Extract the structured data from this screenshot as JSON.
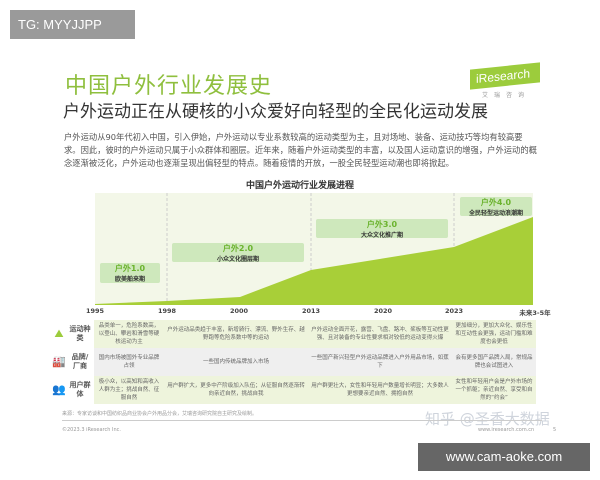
{
  "watermark_top": "TG: MYYJJPP",
  "watermark_bottom": "www.cam-aoke.com",
  "watermark_zhihu": "知乎 @圣香大数据",
  "logo": {
    "text": "iResearch",
    "sub": "艾瑞咨询"
  },
  "title": "中国户外行业发展史",
  "subtitle": "户外运动正在从硬核的小众爱好向轻型的全民化运动发展",
  "intro": "户外运动从90年代初入中国，引入伊始，户外运动以专业系数较高的运动类型为主，且对场地、装备、运动技巧等均有较高要求。因此，彼时的户外运动只属于小众群体和圈层。近年来，随着户外运动类型的丰富，以及国人运动意识的增强，户外运动的概念逐渐被泛化，户外运动也逐渐呈现出偏轻型的特点。随着疫情的开放，一股全民轻型运动潮也即将掀起。",
  "chart": {
    "title": "中国户外运动行业发展进程",
    "x_labels": [
      "1995",
      "1998",
      "2000",
      "2013",
      "2020",
      "2023",
      "未来3-5年"
    ],
    "stages": [
      {
        "name": "户外1.0",
        "desc": "欧美舶来期"
      },
      {
        "name": "户外2.0",
        "desc": "小众文化圈层期"
      },
      {
        "name": "户外3.0",
        "desc": "大众文化推广期"
      },
      {
        "name": "户外4.0",
        "desc": "全民轻型运动浪潮期"
      }
    ],
    "colors": {
      "area": "#a8cf38",
      "background": "#f3f7e8",
      "text_green": "#6bb32e"
    }
  },
  "table": {
    "rows": [
      {
        "icon": "hiking-icon",
        "label": "运动种类",
        "cells": [
          "品类单一，危险系数高，以登山、攀岩和滑雪等硬核运动为主",
          "户外运动品类趋于丰富，新增骑行、漂流、野外生存、越野跑等危险系数中等的运动",
          "户外运动全面开花，露营、飞盘、路冲、桨板等互动性更强、且对装备的专业性要求相对较低的运动变得火爆",
          "更加细分，更加大众化、娱乐性和互动性会更强，运动门槛和难度也会更低"
        ]
      },
      {
        "icon": "brand-icon",
        "label": "品牌/厂商",
        "cells": [
          "国内市场被国外专业品牌占领",
          "一些国内传统品牌加入市场",
          "一些国产新兴轻型户外运动品牌进入户外用品市场，如蕉下",
          "会有更多国产品牌入局，常规品牌也会试图进入"
        ]
      },
      {
        "icon": "users-icon",
        "label": "用户群体",
        "cells": [
          "极小众，以高知和高收入人群为主；挑战自然、征服自然",
          "用户群扩大，更多中产阶级加入队伍；从征服自然逐渐转向亲近自然，挑战自我",
          "用户群更壮大，女性和年轻用户数量增长明显；大多数人更想要亲近自然、拥抱自然",
          "女性和年轻用户会是户外市场的一个抓躯；亲近自然、享受和自然的“约会”"
        ]
      }
    ]
  },
  "source": "来源：专家访谈和中国纺织品商业协会户外用品分会，艾瑞咨询研究院自主研究及绘制。",
  "copyright": "©2023.3 iResearch Inc.",
  "site": "www.iresearch.com.cn",
  "page": "5"
}
